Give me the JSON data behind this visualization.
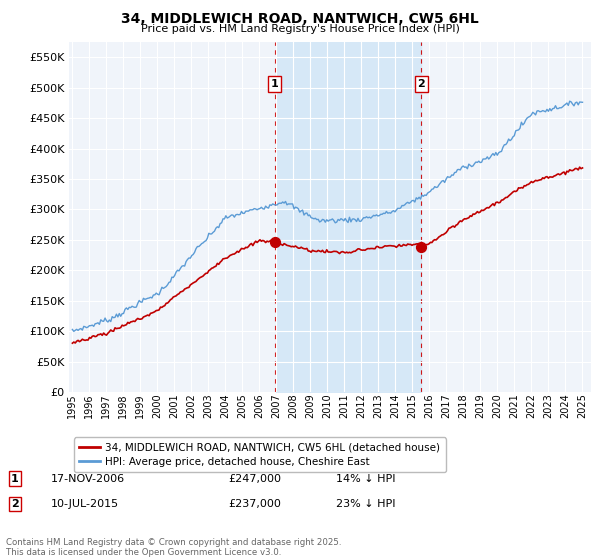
{
  "title": "34, MIDDLEWICH ROAD, NANTWICH, CW5 6HL",
  "subtitle": "Price paid vs. HM Land Registry's House Price Index (HPI)",
  "hpi_color": "#5b9bd5",
  "hpi_fill_color": "#d6e8f7",
  "price_color": "#c00000",
  "vline_color": "#cc0000",
  "ylim": [
    0,
    575000
  ],
  "yticks": [
    0,
    50000,
    100000,
    150000,
    200000,
    250000,
    300000,
    350000,
    400000,
    450000,
    500000,
    550000
  ],
  "x_start_year": 1995,
  "x_end_year": 2025,
  "event1_year": 2006.9,
  "event1_label": "1",
  "event1_price": 247000,
  "event1_date": "17-NOV-2006",
  "event1_pct": "14% ↓ HPI",
  "event2_year": 2015.53,
  "event2_label": "2",
  "event2_price": 237000,
  "event2_date": "10-JUL-2015",
  "event2_pct": "23% ↓ HPI",
  "legend_line1": "34, MIDDLEWICH ROAD, NANTWICH, CW5 6HL (detached house)",
  "legend_line2": "HPI: Average price, detached house, Cheshire East",
  "footnote": "Contains HM Land Registry data © Crown copyright and database right 2025.\nThis data is licensed under the Open Government Licence v3.0.",
  "background_color": "#f0f4fa",
  "grid_color": "#ffffff"
}
